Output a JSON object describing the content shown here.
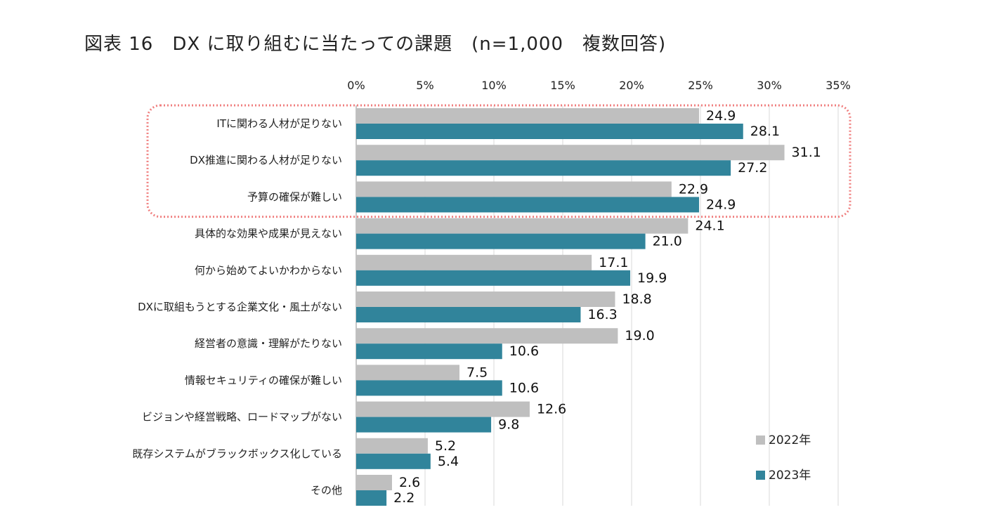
{
  "title": "図表 16　DX に取り組むに当たっての課題　(n=1,000　複数回答)",
  "chart_data": {
    "type": "bar",
    "orientation": "horizontal",
    "title": "図表 16　DX に取り組むに当たっての課題　(n=1,000　複数回答)",
    "xlim": [
      0,
      35
    ],
    "ticks": [
      0,
      5,
      10,
      15,
      20,
      25,
      30,
      35
    ],
    "tick_labels": [
      "0%",
      "5%",
      "10%",
      "15%",
      "20%",
      "25%",
      "30%",
      "35%"
    ],
    "grid": true,
    "legend_position": "bottom-right",
    "categories": [
      "ITに関わる人材が足りない",
      "DX推進に関わる人材が足りない",
      "予算の確保が難しい",
      "具体的な効果や成果が見えない",
      "何から始めてよいかわからない",
      "DXに取組もうとする企業文化・風土がない",
      "経営者の意識・理解がたりない",
      "情報セキュリティの確保が難しい",
      "ビジョンや経営戦略、ロードマップがない",
      "既存システムがブラックボックス化している",
      "その他"
    ],
    "series": [
      {
        "name": "2022年",
        "color": "#bfbfbf",
        "values": [
          24.9,
          31.1,
          22.9,
          24.1,
          17.1,
          18.8,
          19.0,
          7.5,
          12.6,
          5.2,
          2.6
        ],
        "labels": [
          "24.9",
          "31.1",
          "22.9",
          "24.1",
          "17.1",
          "18.8",
          "19.0",
          "7.5",
          "12.6",
          "5.2",
          "2.6"
        ]
      },
      {
        "name": "2023年",
        "color": "#31849b",
        "values": [
          28.1,
          27.2,
          24.9,
          21.0,
          19.9,
          16.3,
          10.6,
          10.6,
          9.8,
          5.4,
          2.2
        ],
        "labels": [
          "28.1",
          "27.2",
          "24.9",
          "21.0",
          "19.9",
          "16.3",
          "10.6",
          "10.6",
          "9.8",
          "5.4",
          "2.2"
        ]
      }
    ],
    "highlight": {
      "first_categories": 3,
      "color": "#f08080"
    }
  }
}
